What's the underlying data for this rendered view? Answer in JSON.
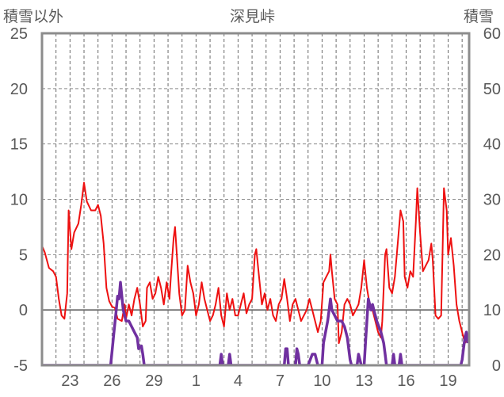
{
  "chart_data": {
    "type": "line",
    "title": "深見峠",
    "left_axis_title": "積雪以外",
    "right_axis_title": "積雪",
    "x_tick_labels": [
      "23",
      "26",
      "29",
      "1",
      "4",
      "7",
      "10",
      "13",
      "16",
      "19"
    ],
    "x_tick_positions": [
      23,
      26,
      29,
      32,
      35,
      38,
      41,
      44,
      47,
      50
    ],
    "x_range": [
      21,
      51.5
    ],
    "y_left_range": [
      -5,
      25
    ],
    "y_left_ticks": [
      25,
      20,
      15,
      10,
      5,
      0,
      -5
    ],
    "y_right_range": [
      0,
      60
    ],
    "y_right_ticks": [
      60,
      50,
      40,
      30,
      20,
      10,
      0
    ],
    "grid": true,
    "series": [
      {
        "axis": "left",
        "color": "#ee1111",
        "points": [
          [
            21.0,
            5.8
          ],
          [
            21.2,
            5.2
          ],
          [
            21.5,
            3.8
          ],
          [
            21.8,
            3.5
          ],
          [
            22.0,
            3.0
          ],
          [
            22.2,
            1.0
          ],
          [
            22.4,
            -0.5
          ],
          [
            22.6,
            -0.8
          ],
          [
            22.8,
            1.5
          ],
          [
            22.9,
            9.0
          ],
          [
            23.1,
            5.5
          ],
          [
            23.3,
            7.0
          ],
          [
            23.6,
            7.8
          ],
          [
            23.8,
            9.5
          ],
          [
            24.0,
            11.5
          ],
          [
            24.2,
            9.8
          ],
          [
            24.5,
            9.0
          ],
          [
            24.8,
            9.0
          ],
          [
            25.0,
            9.5
          ],
          [
            25.2,
            8.5
          ],
          [
            25.4,
            6.0
          ],
          [
            25.6,
            2.0
          ],
          [
            25.8,
            0.8
          ],
          [
            26.0,
            0.3
          ],
          [
            26.2,
            0.2
          ],
          [
            26.4,
            -0.8
          ],
          [
            26.7,
            -1.0
          ],
          [
            26.9,
            0.5
          ],
          [
            27.0,
            -0.8
          ],
          [
            27.2,
            0.5
          ],
          [
            27.4,
            -0.5
          ],
          [
            27.6,
            1.0
          ],
          [
            27.8,
            2.0
          ],
          [
            28.0,
            0.5
          ],
          [
            28.2,
            -1.5
          ],
          [
            28.4,
            -1.0
          ],
          [
            28.5,
            2.0
          ],
          [
            28.7,
            2.5
          ],
          [
            28.9,
            1.0
          ],
          [
            29.1,
            1.5
          ],
          [
            29.3,
            3.0
          ],
          [
            29.5,
            2.0
          ],
          [
            29.7,
            0.5
          ],
          [
            29.9,
            2.5
          ],
          [
            30.1,
            1.0
          ],
          [
            30.2,
            3.0
          ],
          [
            30.4,
            6.5
          ],
          [
            30.5,
            7.5
          ],
          [
            30.6,
            5.5
          ],
          [
            30.8,
            1.5
          ],
          [
            31.0,
            -0.5
          ],
          [
            31.2,
            0.0
          ],
          [
            31.4,
            4.0
          ],
          [
            31.6,
            2.5
          ],
          [
            31.8,
            1.5
          ],
          [
            32.0,
            -0.5
          ],
          [
            32.2,
            0.5
          ],
          [
            32.4,
            2.5
          ],
          [
            32.6,
            1.0
          ],
          [
            32.8,
            0.0
          ],
          [
            33.0,
            -1.0
          ],
          [
            33.2,
            -0.5
          ],
          [
            33.4,
            0.5
          ],
          [
            33.6,
            2.0
          ],
          [
            33.8,
            -0.5
          ],
          [
            34.0,
            -1.5
          ],
          [
            34.2,
            1.5
          ],
          [
            34.4,
            0.0
          ],
          [
            34.6,
            1.0
          ],
          [
            34.8,
            -0.5
          ],
          [
            35.0,
            -0.5
          ],
          [
            35.2,
            0.5
          ],
          [
            35.4,
            1.5
          ],
          [
            35.6,
            -0.3
          ],
          [
            35.8,
            0.5
          ],
          [
            36.0,
            1.0
          ],
          [
            36.2,
            5.0
          ],
          [
            36.3,
            5.5
          ],
          [
            36.5,
            3.0
          ],
          [
            36.7,
            0.5
          ],
          [
            36.9,
            1.5
          ],
          [
            37.1,
            0.0
          ],
          [
            37.3,
            1.0
          ],
          [
            37.5,
            -0.5
          ],
          [
            37.7,
            -1.0
          ],
          [
            37.9,
            0.5
          ],
          [
            38.1,
            1.0
          ],
          [
            38.3,
            2.8
          ],
          [
            38.5,
            1.0
          ],
          [
            38.7,
            -1.0
          ],
          [
            38.9,
            0.5
          ],
          [
            39.1,
            1.0
          ],
          [
            39.3,
            0.0
          ],
          [
            39.5,
            -1.0
          ],
          [
            39.7,
            -0.5
          ],
          [
            39.9,
            0.0
          ],
          [
            40.1,
            1.0
          ],
          [
            40.3,
            0.0
          ],
          [
            40.5,
            -1.0
          ],
          [
            40.7,
            -2.0
          ],
          [
            40.9,
            -1.0
          ],
          [
            41.1,
            2.5
          ],
          [
            41.3,
            3.0
          ],
          [
            41.5,
            3.5
          ],
          [
            41.6,
            5.0
          ],
          [
            41.7,
            3.5
          ],
          [
            41.9,
            1.0
          ],
          [
            42.1,
            0.5
          ],
          [
            42.2,
            -3.0
          ],
          [
            42.4,
            -2.0
          ],
          [
            42.6,
            0.5
          ],
          [
            42.8,
            1.0
          ],
          [
            43.0,
            0.5
          ],
          [
            43.2,
            -0.5
          ],
          [
            43.4,
            0.0
          ],
          [
            43.6,
            0.5
          ],
          [
            43.8,
            2.0
          ],
          [
            44.0,
            4.5
          ],
          [
            44.2,
            2.0
          ],
          [
            44.4,
            0.5
          ],
          [
            44.6,
            0.0
          ],
          [
            44.8,
            -1.0
          ],
          [
            45.0,
            -2.0
          ],
          [
            45.2,
            -2.5
          ],
          [
            45.3,
            -1.0
          ],
          [
            45.5,
            5.0
          ],
          [
            45.6,
            5.5
          ],
          [
            45.8,
            2.0
          ],
          [
            46.0,
            1.5
          ],
          [
            46.2,
            3.0
          ],
          [
            46.4,
            6.0
          ],
          [
            46.6,
            9.0
          ],
          [
            46.8,
            8.0
          ],
          [
            46.9,
            3.0
          ],
          [
            47.1,
            2.0
          ],
          [
            47.3,
            3.5
          ],
          [
            47.5,
            3.0
          ],
          [
            47.7,
            8.0
          ],
          [
            47.8,
            11.0
          ],
          [
            48.0,
            7.0
          ],
          [
            48.2,
            3.5
          ],
          [
            48.4,
            4.0
          ],
          [
            48.6,
            4.5
          ],
          [
            48.8,
            6.0
          ],
          [
            48.9,
            4.5
          ],
          [
            49.1,
            -0.5
          ],
          [
            49.3,
            -0.8
          ],
          [
            49.5,
            -0.5
          ],
          [
            49.6,
            5.0
          ],
          [
            49.7,
            11.0
          ],
          [
            49.9,
            9.0
          ],
          [
            50.0,
            5.0
          ],
          [
            50.2,
            6.5
          ],
          [
            50.4,
            4.0
          ],
          [
            50.6,
            0.5
          ],
          [
            50.8,
            -1.0
          ],
          [
            51.0,
            -2.0
          ],
          [
            51.2,
            -3.0
          ],
          [
            51.4,
            -2.5
          ]
        ]
      },
      {
        "axis": "right",
        "color": "#7030a0",
        "points": [
          [
            21.0,
            0
          ],
          [
            25.9,
            0
          ],
          [
            26.0,
            2.5
          ],
          [
            26.1,
            5
          ],
          [
            26.3,
            10
          ],
          [
            26.4,
            12.5
          ],
          [
            26.5,
            12
          ],
          [
            26.6,
            15
          ],
          [
            26.8,
            10
          ],
          [
            27.0,
            8
          ],
          [
            27.2,
            8
          ],
          [
            27.4,
            7
          ],
          [
            27.6,
            6
          ],
          [
            27.8,
            5
          ],
          [
            27.9,
            3
          ],
          [
            28.1,
            3.5
          ],
          [
            28.2,
            2
          ],
          [
            28.3,
            0
          ],
          [
            33.7,
            0
          ],
          [
            33.8,
            2
          ],
          [
            33.9,
            0
          ],
          [
            34.3,
            0
          ],
          [
            34.4,
            2
          ],
          [
            34.5,
            0
          ],
          [
            38.3,
            0
          ],
          [
            38.4,
            3
          ],
          [
            38.5,
            3
          ],
          [
            38.6,
            0
          ],
          [
            39.1,
            0
          ],
          [
            39.2,
            3
          ],
          [
            39.3,
            2
          ],
          [
            39.4,
            0
          ],
          [
            40.0,
            0
          ],
          [
            40.3,
            2
          ],
          [
            40.5,
            2
          ],
          [
            40.7,
            0
          ],
          [
            41.0,
            0
          ],
          [
            41.1,
            4
          ],
          [
            41.4,
            8
          ],
          [
            41.5,
            10
          ],
          [
            41.6,
            12
          ],
          [
            41.7,
            10
          ],
          [
            41.9,
            9
          ],
          [
            42.1,
            8
          ],
          [
            42.4,
            8
          ],
          [
            42.6,
            7
          ],
          [
            42.8,
            5
          ],
          [
            42.9,
            3
          ],
          [
            43.0,
            1
          ],
          [
            43.1,
            0
          ],
          [
            43.5,
            0
          ],
          [
            43.6,
            2
          ],
          [
            43.7,
            1
          ],
          [
            43.8,
            0
          ],
          [
            44.0,
            0
          ],
          [
            44.1,
            4
          ],
          [
            44.2,
            8
          ],
          [
            44.3,
            12
          ],
          [
            44.4,
            11
          ],
          [
            44.5,
            10
          ],
          [
            44.6,
            11
          ],
          [
            44.7,
            10
          ],
          [
            44.9,
            8
          ],
          [
            45.2,
            6
          ],
          [
            45.4,
            4
          ],
          [
            45.5,
            2
          ],
          [
            45.6,
            0
          ],
          [
            46.0,
            0
          ],
          [
            46.1,
            2
          ],
          [
            46.2,
            0
          ],
          [
            46.5,
            0
          ],
          [
            46.6,
            2
          ],
          [
            46.7,
            0
          ],
          [
            50.9,
            0
          ],
          [
            51.0,
            1
          ],
          [
            51.1,
            3
          ],
          [
            51.2,
            5
          ],
          [
            51.3,
            6
          ],
          [
            51.4,
            4
          ]
        ]
      }
    ]
  }
}
